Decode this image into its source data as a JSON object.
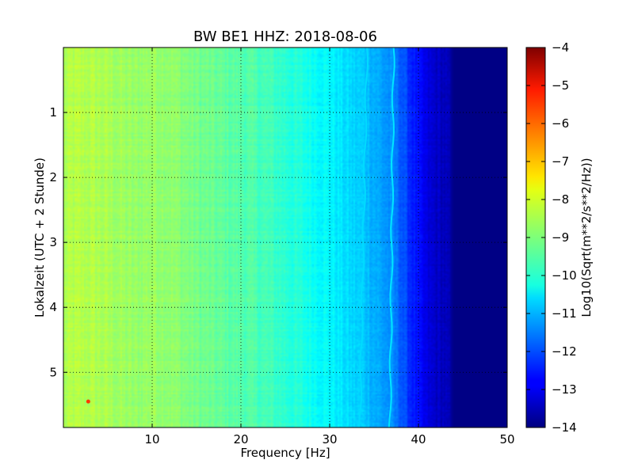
{
  "chart_data": {
    "type": "heatmap",
    "title": "BW BE1 HHZ: 2018-08-06",
    "xlabel": "Frequency [Hz]",
    "ylabel": "Lokalzeit (UTC + 2 Stunde)",
    "xlim": [
      0,
      50
    ],
    "ylim": [
      5.85,
      0.0
    ],
    "y_inverted": true,
    "grid": true,
    "x_ticks": [
      10,
      20,
      30,
      40,
      50
    ],
    "x_tick_labels": [
      "10",
      "20",
      "30",
      "40",
      "50"
    ],
    "y_ticks": [
      1,
      2,
      3,
      4,
      5
    ],
    "y_tick_labels": [
      "1",
      "2",
      "3",
      "4",
      "5"
    ],
    "colormap": "jet",
    "colorbar": {
      "label": "Log10(Sqrt(m**2/s**2/Hz))",
      "min": -14,
      "max": -4,
      "ticks": [
        -4,
        -5,
        -6,
        -7,
        -8,
        -9,
        -10,
        -11,
        -12,
        -13,
        -14
      ],
      "tick_labels": [
        "−4",
        "−5",
        "−6",
        "−7",
        "−8",
        "−9",
        "−10",
        "−11",
        "−12",
        "−13",
        "−14"
      ]
    },
    "spectral_profile": {
      "frequency_hz": [
        0,
        1,
        3,
        5,
        8,
        10,
        12,
        15,
        18,
        20,
        23,
        26,
        28,
        30,
        32,
        34,
        35,
        36,
        37,
        38,
        39,
        40,
        41,
        42,
        43,
        43.5,
        44,
        50
      ],
      "log_amplitude": [
        -8.6,
        -8.5,
        -8.5,
        -8.6,
        -8.8,
        -8.7,
        -8.8,
        -9.1,
        -9.3,
        -9.4,
        -9.6,
        -9.9,
        -10.1,
        -10.3,
        -10.6,
        -10.8,
        -11.0,
        -11.2,
        -11.4,
        -11.8,
        -12.3,
        -12.7,
        -13.1,
        -13.3,
        -13.4,
        -13.6,
        -13.95,
        -13.95
      ]
    },
    "spectral_lines": [
      {
        "frequency_hz_at_start": 34.2,
        "frequency_hz_at_end": 33.4,
        "log_amplitude": -10.6
      },
      {
        "frequency_hz_at_start": 37.2,
        "frequency_hz_at_end": 36.8,
        "log_amplitude": -10.5
      }
    ],
    "peak_event": {
      "frequency_hz": 2.8,
      "time_h": 5.45,
      "log_amplitude": -5.8
    }
  }
}
